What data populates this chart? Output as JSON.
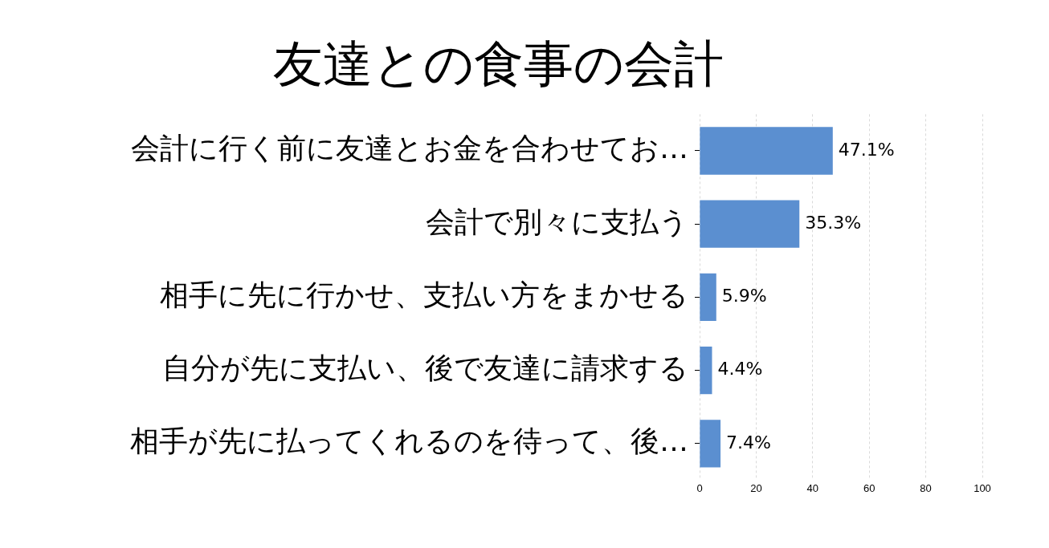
{
  "chart_data": {
    "type": "bar",
    "orientation": "horizontal",
    "title": "友達との食事の会計",
    "categories": [
      "会計に行く前に友達とお金を合わせてお…",
      "会計で別々に支払う",
      "相手に先に行かせ、支払い方をまかせる",
      "自分が先に支払い、後で友達に請求する",
      "相手が先に払ってくれるのを待って、後…"
    ],
    "values": [
      47.1,
      35.3,
      5.9,
      4.4,
      7.4
    ],
    "value_labels": [
      "47.1%",
      "35.3%",
      "5.9%",
      "4.4%",
      "7.4%"
    ],
    "color": "#5b8fd0",
    "xlim": [
      0,
      100
    ],
    "xticks": [
      0,
      20,
      40,
      60,
      80,
      100
    ],
    "grid": "x",
    "legend": false
  }
}
